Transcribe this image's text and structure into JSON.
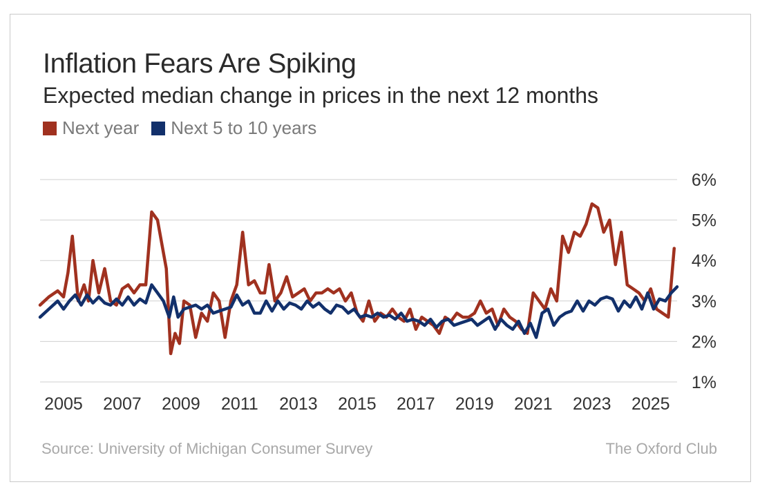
{
  "title": "Inflation Fears Are Spiking",
  "subtitle": "Expected median change in prices in the next 12 months",
  "legend": [
    {
      "label": "Next year",
      "color": "#a0311f"
    },
    {
      "label": "Next 5 to 10 years",
      "color": "#12306b"
    }
  ],
  "footer": {
    "source": "Source: University of Michigan Consumer Survey",
    "brand": "The Oxford Club"
  },
  "chart_data": {
    "type": "line",
    "title": "Inflation Fears Are Spiking",
    "xlabel": "",
    "ylabel": "",
    "xlim": [
      2004.2,
      2025.9
    ],
    "ylim": [
      1,
      6
    ],
    "y_ticks": [
      1,
      2,
      3,
      4,
      5,
      6
    ],
    "y_tick_labels": [
      "1%",
      "2%",
      "3%",
      "4%",
      "5%",
      "6%"
    ],
    "x_ticks": [
      2005,
      2007,
      2009,
      2011,
      2013,
      2015,
      2017,
      2019,
      2021,
      2023,
      2025
    ],
    "x_tick_labels": [
      "2005",
      "2007",
      "2009",
      "2011",
      "2013",
      "2015",
      "2017",
      "2019",
      "2021",
      "2023",
      "2025"
    ],
    "grid": "horizontal",
    "series": [
      {
        "name": "Next year",
        "color": "#a0311f",
        "x": [
          2004.2,
          2004.5,
          2004.8,
          2005.0,
          2005.15,
          2005.3,
          2005.5,
          2005.7,
          2005.85,
          2006.0,
          2006.2,
          2006.4,
          2006.6,
          2006.8,
          2007.0,
          2007.2,
          2007.4,
          2007.6,
          2007.8,
          2008.0,
          2008.2,
          2008.5,
          2008.65,
          2008.8,
          2008.95,
          2009.1,
          2009.3,
          2009.5,
          2009.7,
          2009.9,
          2010.1,
          2010.3,
          2010.5,
          2010.7,
          2010.9,
          2011.1,
          2011.3,
          2011.5,
          2011.7,
          2011.85,
          2012.0,
          2012.2,
          2012.4,
          2012.6,
          2012.8,
          2013.0,
          2013.2,
          2013.4,
          2013.6,
          2013.8,
          2014.0,
          2014.2,
          2014.4,
          2014.6,
          2014.8,
          2015.0,
          2015.2,
          2015.4,
          2015.6,
          2015.8,
          2016.0,
          2016.2,
          2016.4,
          2016.6,
          2016.8,
          2017.0,
          2017.2,
          2017.4,
          2017.6,
          2017.8,
          2018.0,
          2018.2,
          2018.4,
          2018.6,
          2018.8,
          2019.0,
          2019.2,
          2019.4,
          2019.6,
          2019.8,
          2020.0,
          2020.2,
          2020.4,
          2020.6,
          2020.8,
          2021.0,
          2021.2,
          2021.4,
          2021.6,
          2021.8,
          2022.0,
          2022.2,
          2022.4,
          2022.6,
          2022.8,
          2023.0,
          2023.2,
          2023.4,
          2023.6,
          2023.8,
          2024.0,
          2024.2,
          2024.4,
          2024.6,
          2024.8,
          2025.0,
          2025.2,
          2025.4,
          2025.6,
          2025.8
        ],
        "values": [
          2.9,
          3.1,
          3.25,
          3.1,
          3.7,
          4.6,
          3.0,
          3.4,
          3.0,
          4.0,
          3.2,
          3.8,
          3.0,
          2.9,
          3.3,
          3.4,
          3.2,
          3.4,
          3.4,
          5.2,
          5.0,
          3.8,
          1.7,
          2.2,
          1.95,
          3.0,
          2.9,
          2.1,
          2.7,
          2.5,
          3.2,
          3.0,
          2.1,
          3.0,
          3.4,
          4.7,
          3.4,
          3.5,
          3.2,
          3.2,
          3.9,
          3.0,
          3.2,
          3.6,
          3.1,
          3.2,
          3.3,
          3.0,
          3.2,
          3.2,
          3.3,
          3.2,
          3.3,
          3.0,
          3.2,
          2.7,
          2.5,
          3.0,
          2.5,
          2.7,
          2.6,
          2.8,
          2.6,
          2.5,
          2.8,
          2.3,
          2.6,
          2.5,
          2.4,
          2.2,
          2.6,
          2.5,
          2.7,
          2.6,
          2.6,
          2.7,
          3.0,
          2.7,
          2.8,
          2.4,
          2.8,
          2.6,
          2.5,
          2.3,
          2.2,
          3.2,
          3.0,
          2.8,
          3.3,
          3.0,
          4.6,
          4.2,
          4.7,
          4.6,
          4.9,
          5.4,
          5.3,
          4.7,
          5.0,
          3.9,
          4.7,
          3.4,
          3.3,
          3.2,
          3.0,
          3.3,
          2.8,
          2.7,
          2.6,
          4.3
        ]
      },
      {
        "name": "Next 5 to 10 years",
        "color": "#12306b",
        "x": [
          2004.2,
          2004.5,
          2004.8,
          2005.0,
          2005.2,
          2005.4,
          2005.6,
          2005.8,
          2006.0,
          2006.2,
          2006.4,
          2006.6,
          2006.8,
          2007.0,
          2007.2,
          2007.4,
          2007.6,
          2007.8,
          2008.0,
          2008.2,
          2008.4,
          2008.6,
          2008.75,
          2008.9,
          2009.1,
          2009.3,
          2009.5,
          2009.7,
          2009.9,
          2010.1,
          2010.3,
          2010.5,
          2010.7,
          2010.9,
          2011.1,
          2011.3,
          2011.5,
          2011.7,
          2011.9,
          2012.1,
          2012.3,
          2012.5,
          2012.7,
          2012.9,
          2013.1,
          2013.3,
          2013.5,
          2013.7,
          2013.9,
          2014.1,
          2014.3,
          2014.5,
          2014.7,
          2014.9,
          2015.1,
          2015.3,
          2015.5,
          2015.7,
          2015.9,
          2016.1,
          2016.3,
          2016.5,
          2016.7,
          2016.9,
          2017.1,
          2017.3,
          2017.5,
          2017.7,
          2017.9,
          2018.1,
          2018.3,
          2018.5,
          2018.7,
          2018.9,
          2019.1,
          2019.3,
          2019.5,
          2019.7,
          2019.9,
          2020.1,
          2020.3,
          2020.5,
          2020.7,
          2020.9,
          2021.1,
          2021.3,
          2021.5,
          2021.7,
          2021.9,
          2022.1,
          2022.3,
          2022.5,
          2022.7,
          2022.9,
          2023.1,
          2023.3,
          2023.5,
          2023.7,
          2023.9,
          2024.1,
          2024.3,
          2024.5,
          2024.7,
          2024.9,
          2025.1,
          2025.3,
          2025.5,
          2025.7,
          2025.9
        ],
        "values": [
          2.6,
          2.8,
          3.0,
          2.8,
          3.0,
          3.15,
          2.9,
          3.15,
          2.95,
          3.1,
          2.95,
          2.9,
          3.05,
          2.9,
          3.1,
          2.9,
          3.05,
          2.95,
          3.4,
          3.2,
          3.0,
          2.6,
          3.1,
          2.6,
          2.8,
          2.85,
          2.9,
          2.8,
          2.9,
          2.7,
          2.75,
          2.8,
          2.85,
          3.15,
          2.9,
          3.0,
          2.7,
          2.7,
          3.0,
          2.75,
          3.0,
          2.8,
          2.95,
          2.9,
          2.8,
          3.0,
          2.85,
          2.95,
          2.8,
          2.7,
          2.9,
          2.85,
          2.7,
          2.8,
          2.6,
          2.65,
          2.6,
          2.7,
          2.6,
          2.65,
          2.55,
          2.7,
          2.5,
          2.55,
          2.5,
          2.4,
          2.55,
          2.35,
          2.5,
          2.55,
          2.4,
          2.45,
          2.5,
          2.55,
          2.4,
          2.5,
          2.6,
          2.3,
          2.55,
          2.4,
          2.3,
          2.5,
          2.2,
          2.45,
          2.1,
          2.7,
          2.8,
          2.4,
          2.6,
          2.7,
          2.75,
          3.0,
          2.75,
          3.0,
          2.9,
          3.05,
          3.1,
          3.05,
          2.75,
          3.0,
          2.85,
          3.1,
          2.8,
          3.2,
          2.8,
          3.05,
          3.0,
          3.2,
          3.35
        ]
      }
    ]
  }
}
